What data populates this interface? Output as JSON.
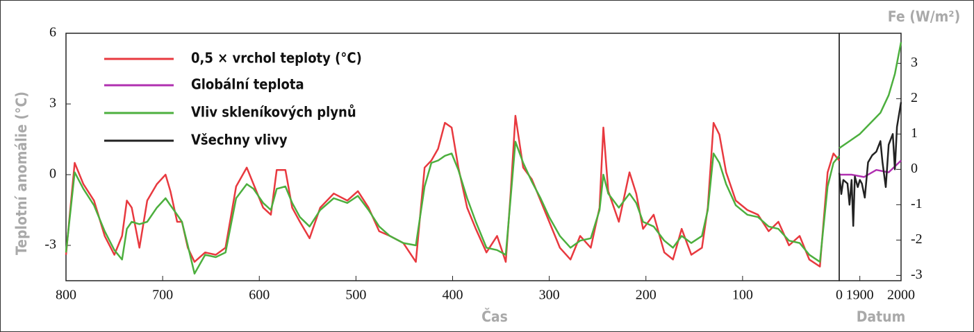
{
  "chart_data": [
    {
      "type": "line",
      "y_label": "Teplotní anomálie (°C)",
      "x_label": "Čas",
      "xlim": [
        800,
        0
      ],
      "xticks": [
        800,
        700,
        600,
        500,
        400,
        300,
        200,
        100,
        0
      ],
      "ylim": [
        -4.5,
        6
      ],
      "yticks": [
        6,
        3,
        0,
        -3
      ],
      "x": [
        800,
        791,
        782,
        771,
        760,
        750,
        742,
        737,
        732,
        724,
        716,
        706,
        697,
        692,
        685,
        680,
        674,
        667,
        656,
        645,
        635,
        624,
        613,
        606,
        596,
        588,
        582,
        573,
        566,
        558,
        548,
        537,
        523,
        509,
        498,
        487,
        476,
        465,
        451,
        438,
        429,
        422,
        415,
        408,
        401,
        394,
        385,
        376,
        365,
        354,
        345,
        340,
        335,
        327,
        318,
        309,
        300,
        289,
        278,
        268,
        257,
        248,
        244,
        239,
        228,
        217,
        210,
        203,
        192,
        181,
        172,
        163,
        153,
        142,
        136,
        130,
        124,
        117,
        107,
        95,
        84,
        73,
        63,
        52,
        41,
        31,
        20,
        12,
        6,
        0
      ],
      "series": [
        {
          "name": "0,5 × vrchol teploty (°C)",
          "color": "#e8393f",
          "values": [
            -3.4,
            0.5,
            -0.4,
            -1.1,
            -2.6,
            -3.4,
            -2.6,
            -1.1,
            -1.4,
            -3.1,
            -1.1,
            -0.4,
            0,
            -0.7,
            -2.0,
            -2.0,
            -3.1,
            -3.7,
            -3.3,
            -3.4,
            -3.1,
            -0.5,
            0.3,
            -0.4,
            -1.4,
            -1.7,
            0.2,
            0.2,
            -1.4,
            -2.0,
            -2.7,
            -1.4,
            -0.8,
            -1.1,
            -0.7,
            -1.4,
            -2.4,
            -2.6,
            -2.9,
            -3.7,
            0.3,
            0.6,
            1.1,
            2.2,
            2.0,
            0.3,
            -1.4,
            -2.3,
            -3.3,
            -2.6,
            -3.7,
            -0.8,
            2.5,
            0.3,
            -0.2,
            -1.1,
            -2.0,
            -3.1,
            -3.6,
            -2.6,
            -3.1,
            -1.4,
            2.0,
            -0.7,
            -2.0,
            0.1,
            -0.8,
            -2.3,
            -1.7,
            -3.3,
            -3.6,
            -2.3,
            -3.4,
            -3.1,
            -1.4,
            2.2,
            1.7,
            0.1,
            -1.1,
            -1.5,
            -1.7,
            -2.4,
            -2.0,
            -3.0,
            -2.6,
            -3.6,
            -3.9,
            0.1,
            0.9,
            0.6
          ]
        },
        {
          "name": "Vliv skleníkových plynů",
          "color": "#4caf3e",
          "values": [
            -3.3,
            0.1,
            -0.6,
            -1.3,
            -2.4,
            -3.2,
            -3.6,
            -2.3,
            -2.0,
            -2.1,
            -2.0,
            -1.4,
            -1.0,
            -1.3,
            -1.7,
            -2.0,
            -3.0,
            -4.2,
            -3.4,
            -3.5,
            -3.3,
            -1.0,
            -0.4,
            -0.6,
            -1.2,
            -1.5,
            -0.6,
            -0.5,
            -1.2,
            -1.8,
            -2.2,
            -1.5,
            -1.0,
            -1.2,
            -0.9,
            -1.5,
            -2.2,
            -2.6,
            -2.9,
            -3.0,
            -0.5,
            0.5,
            0.6,
            0.8,
            0.9,
            0.2,
            -1.0,
            -2.0,
            -3.1,
            -3.2,
            -3.4,
            -1.0,
            1.4,
            0.5,
            -0.3,
            -1.0,
            -1.8,
            -2.6,
            -3.1,
            -2.8,
            -2.7,
            -1.5,
            0.0,
            -0.8,
            -1.4,
            -0.8,
            -1.2,
            -2.0,
            -2.2,
            -2.8,
            -3.1,
            -2.6,
            -2.9,
            -2.6,
            -1.5,
            0.9,
            0.5,
            -0.4,
            -1.3,
            -1.7,
            -1.8,
            -2.2,
            -2.3,
            -2.8,
            -2.9,
            -3.4,
            -3.7,
            -0.5,
            0.5,
            0.8
          ]
        }
      ]
    },
    {
      "type": "line",
      "x_label": "Datum",
      "y2_label": "Fe (W/m²)",
      "xlim": [
        1850,
        2000
      ],
      "xticks": [
        1900,
        2000
      ],
      "ylim": [
        -4.5,
        6
      ],
      "y2lim": [
        -3.15,
        3.85
      ],
      "y2ticks": [
        3,
        2,
        1,
        0,
        -1,
        -2,
        -3
      ],
      "series": [
        {
          "name": "Globální teplota",
          "color": "#b030b0",
          "x": [
            1850,
            1880,
            1910,
            1940,
            1970,
            2000
          ],
          "values": [
            0.0,
            0.0,
            -0.1,
            0.2,
            0.1,
            0.6
          ]
        },
        {
          "name": "Všechny vlivy",
          "color": "#222222",
          "axis": "y2",
          "x": [
            1850,
            1855,
            1860,
            1870,
            1875,
            1880,
            1884,
            1888,
            1895,
            1900,
            1905,
            1912,
            1920,
            1930,
            1940,
            1950,
            1955,
            1963,
            1970,
            1980,
            1985,
            1990,
            2000
          ],
          "values": [
            -0.1,
            -0.7,
            -0.3,
            -0.4,
            -1.0,
            -0.3,
            -1.6,
            -0.2,
            -0.5,
            -0.3,
            -0.4,
            -0.8,
            0.2,
            0.4,
            0.5,
            0.8,
            0.2,
            -0.5,
            0.7,
            1.0,
            0.0,
            1.2,
            1.9
          ]
        },
        {
          "color": "#4caf3e",
          "axis": "y2",
          "x": [
            1850,
            1875,
            1900,
            1925,
            1950,
            1970,
            1985,
            2000
          ],
          "values": [
            0.6,
            0.8,
            1.0,
            1.3,
            1.6,
            2.1,
            2.7,
            3.6
          ]
        }
      ]
    }
  ]
}
